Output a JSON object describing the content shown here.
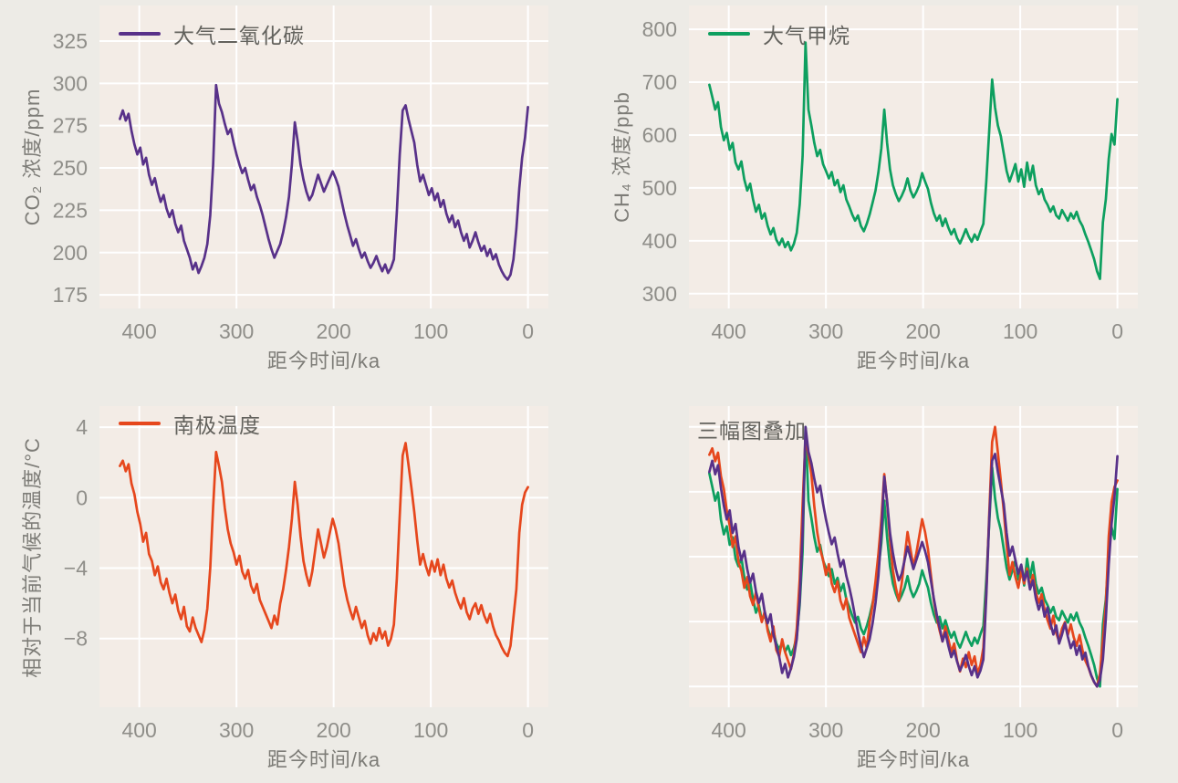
{
  "style": {
    "page_bg": "#edebe6",
    "plot_bg": "#f3ece6",
    "grid_color": "#ffffff",
    "tick_color": "#8f8e89",
    "co2_color": "#583189",
    "ch4_color": "#0d9f5f",
    "temp_color": "#e6471d"
  },
  "axes": {
    "x_label": "距今时间/ka",
    "x_ticks": [
      400,
      300,
      200,
      100,
      0
    ],
    "x_range": [
      441,
      -21
    ],
    "x_reversed": true,
    "grid": "white gridlines on light panel background, no axis spines"
  },
  "chart_data": [
    {
      "id": "co2",
      "type": "line",
      "title": "大气二氧化碳",
      "ylabel": "CO₂ 浓度/ppm",
      "xlabel": "距今时间/ka",
      "color": "#583189",
      "legend_position": "upper-left",
      "yticks": [
        325,
        300,
        275,
        250,
        225,
        200,
        175
      ],
      "ylim": [
        167,
        346
      ],
      "x": [
        420,
        417,
        414,
        411,
        408,
        405,
        402,
        399,
        396,
        393,
        390,
        387,
        384,
        381,
        378,
        375,
        372,
        369,
        366,
        363,
        360,
        357,
        354,
        351,
        348,
        345,
        342,
        339,
        336,
        333,
        330,
        327,
        324,
        321,
        318,
        315,
        312,
        309,
        306,
        303,
        300,
        297,
        294,
        291,
        288,
        285,
        282,
        279,
        276,
        273,
        270,
        267,
        264,
        261,
        258,
        255,
        252,
        249,
        246,
        243,
        240,
        237,
        234,
        231,
        228,
        225,
        222,
        219,
        216,
        213,
        210,
        207,
        204,
        201,
        198,
        195,
        192,
        189,
        186,
        183,
        180,
        177,
        174,
        171,
        168,
        165,
        162,
        159,
        156,
        153,
        150,
        147,
        144,
        141,
        138,
        135,
        132,
        129,
        126,
        123,
        120,
        117,
        114,
        111,
        108,
        105,
        102,
        99,
        96,
        93,
        90,
        87,
        84,
        81,
        78,
        75,
        72,
        69,
        66,
        63,
        60,
        57,
        54,
        51,
        48,
        45,
        42,
        39,
        36,
        33,
        30,
        27,
        24,
        21,
        18,
        15,
        12,
        9,
        6,
        3,
        0
      ],
      "values": [
        279,
        284,
        278,
        282,
        272,
        264,
        258,
        262,
        252,
        256,
        246,
        240,
        244,
        236,
        230,
        234,
        226,
        221,
        225,
        217,
        212,
        216,
        207,
        202,
        197,
        190,
        194,
        188,
        192,
        197,
        205,
        222,
        252,
        299,
        288,
        283,
        276,
        270,
        273,
        265,
        258,
        252,
        247,
        250,
        243,
        237,
        240,
        233,
        228,
        222,
        215,
        208,
        202,
        197,
        201,
        205,
        212,
        221,
        233,
        252,
        277,
        266,
        252,
        243,
        236,
        231,
        234,
        240,
        246,
        241,
        236,
        240,
        244,
        248,
        244,
        239,
        231,
        223,
        216,
        210,
        204,
        208,
        202,
        197,
        200,
        195,
        191,
        194,
        198,
        193,
        189,
        193,
        188,
        191,
        196,
        224,
        258,
        284,
        287,
        279,
        272,
        265,
        252,
        242,
        246,
        240,
        234,
        238,
        231,
        235,
        227,
        231,
        223,
        218,
        222,
        215,
        219,
        212,
        207,
        211,
        203,
        207,
        212,
        206,
        201,
        204,
        198,
        202,
        196,
        199,
        193,
        189,
        186,
        184,
        187,
        196,
        214,
        238,
        256,
        268,
        286
      ]
    },
    {
      "id": "ch4",
      "type": "line",
      "title": "大气甲烷",
      "ylabel": "CH₄ 浓度/ppb",
      "xlabel": "距今时间/ka",
      "color": "#0d9f5f",
      "legend_position": "upper-left",
      "yticks": [
        800,
        700,
        600,
        500,
        400,
        300
      ],
      "ylim": [
        272,
        845
      ],
      "x": [
        420,
        417,
        414,
        411,
        408,
        405,
        402,
        399,
        396,
        393,
        390,
        387,
        384,
        381,
        378,
        375,
        372,
        369,
        366,
        363,
        360,
        357,
        354,
        351,
        348,
        345,
        342,
        339,
        336,
        333,
        330,
        327,
        324,
        321,
        318,
        315,
        312,
        309,
        306,
        303,
        300,
        297,
        294,
        291,
        288,
        285,
        282,
        279,
        276,
        273,
        270,
        267,
        264,
        261,
        258,
        255,
        252,
        249,
        246,
        243,
        240,
        237,
        234,
        231,
        228,
        225,
        222,
        219,
        216,
        213,
        210,
        207,
        204,
        201,
        198,
        195,
        192,
        189,
        186,
        183,
        180,
        177,
        174,
        171,
        168,
        165,
        162,
        159,
        156,
        153,
        150,
        147,
        144,
        141,
        138,
        135,
        132,
        129,
        126,
        123,
        120,
        117,
        114,
        111,
        108,
        105,
        102,
        99,
        96,
        93,
        90,
        87,
        84,
        81,
        78,
        75,
        72,
        69,
        66,
        63,
        60,
        57,
        54,
        51,
        48,
        45,
        42,
        39,
        36,
        33,
        30,
        27,
        24,
        21,
        18,
        15,
        12,
        9,
        6,
        3,
        0
      ],
      "values": [
        695,
        672,
        648,
        662,
        615,
        590,
        604,
        572,
        585,
        548,
        535,
        550,
        516,
        495,
        508,
        478,
        455,
        468,
        442,
        452,
        428,
        412,
        424,
        402,
        392,
        404,
        388,
        398,
        382,
        394,
        415,
        468,
        560,
        775,
        648,
        618,
        585,
        560,
        572,
        545,
        532,
        518,
        530,
        505,
        515,
        492,
        505,
        478,
        465,
        450,
        438,
        448,
        428,
        418,
        432,
        450,
        472,
        495,
        530,
        575,
        648,
        585,
        535,
        505,
        488,
        475,
        485,
        498,
        518,
        495,
        482,
        492,
        505,
        528,
        512,
        498,
        472,
        452,
        438,
        448,
        428,
        442,
        425,
        412,
        422,
        405,
        395,
        408,
        422,
        408,
        398,
        412,
        402,
        418,
        432,
        512,
        608,
        705,
        652,
        618,
        598,
        565,
        532,
        512,
        528,
        545,
        512,
        535,
        502,
        548,
        515,
        542,
        505,
        488,
        498,
        478,
        468,
        455,
        465,
        448,
        442,
        458,
        448,
        438,
        452,
        442,
        455,
        438,
        428,
        412,
        398,
        382,
        365,
        342,
        328,
        435,
        478,
        555,
        602,
        582,
        668
      ]
    },
    {
      "id": "temp",
      "type": "line",
      "title": "南极温度",
      "ylabel": "相对于当前气候的温度/°C",
      "xlabel": "距今时间/ka",
      "color": "#e6471d",
      "legend_position": "upper-left",
      "yticks": [
        4,
        0,
        -4,
        -8
      ],
      "ylim": [
        -11.9,
        5.2
      ],
      "x": [
        420,
        417,
        414,
        411,
        408,
        405,
        402,
        399,
        396,
        393,
        390,
        387,
        384,
        381,
        378,
        375,
        372,
        369,
        366,
        363,
        360,
        357,
        354,
        351,
        348,
        345,
        342,
        339,
        336,
        333,
        330,
        327,
        324,
        321,
        318,
        315,
        312,
        309,
        306,
        303,
        300,
        297,
        294,
        291,
        288,
        285,
        282,
        279,
        276,
        273,
        270,
        267,
        264,
        261,
        258,
        255,
        252,
        249,
        246,
        243,
        240,
        237,
        234,
        231,
        228,
        225,
        222,
        219,
        216,
        213,
        210,
        207,
        204,
        201,
        198,
        195,
        192,
        189,
        186,
        183,
        180,
        177,
        174,
        171,
        168,
        165,
        162,
        159,
        156,
        153,
        150,
        147,
        144,
        141,
        138,
        135,
        132,
        129,
        126,
        123,
        120,
        117,
        114,
        111,
        108,
        105,
        102,
        99,
        96,
        93,
        90,
        87,
        84,
        81,
        78,
        75,
        72,
        69,
        66,
        63,
        60,
        57,
        54,
        51,
        48,
        45,
        42,
        39,
        36,
        33,
        30,
        27,
        24,
        21,
        18,
        15,
        12,
        9,
        6,
        3,
        0
      ],
      "values": [
        1.8,
        2.1,
        1.5,
        1.9,
        0.8,
        0.2,
        -0.8,
        -1.5,
        -2.5,
        -2.0,
        -3.2,
        -3.6,
        -4.4,
        -3.9,
        -4.8,
        -5.2,
        -4.6,
        -5.4,
        -6.0,
        -5.5,
        -6.4,
        -6.9,
        -6.2,
        -7.3,
        -7.6,
        -6.8,
        -7.4,
        -7.8,
        -8.2,
        -7.5,
        -6.3,
        -4.0,
        -0.5,
        2.6,
        1.8,
        0.9,
        -0.6,
        -1.8,
        -2.6,
        -3.1,
        -3.8,
        -3.3,
        -4.2,
        -4.6,
        -4.1,
        -5.0,
        -5.4,
        -4.9,
        -5.8,
        -6.2,
        -6.6,
        -7.0,
        -7.4,
        -6.7,
        -7.2,
        -6.0,
        -5.2,
        -4.1,
        -2.8,
        -1.2,
        0.9,
        -0.4,
        -2.2,
        -3.6,
        -4.4,
        -5.0,
        -4.2,
        -3.0,
        -1.8,
        -2.6,
        -3.4,
        -2.8,
        -2.0,
        -1.2,
        -1.8,
        -2.6,
        -3.8,
        -5.0,
        -5.8,
        -6.4,
        -6.9,
        -6.2,
        -6.8,
        -7.4,
        -7.0,
        -7.8,
        -8.3,
        -7.7,
        -8.1,
        -7.4,
        -8.0,
        -7.6,
        -8.4,
        -8.0,
        -7.2,
        -4.6,
        -1.0,
        2.4,
        3.1,
        1.9,
        0.6,
        -0.8,
        -2.4,
        -3.8,
        -3.2,
        -3.9,
        -4.4,
        -3.6,
        -4.2,
        -3.5,
        -4.4,
        -3.8,
        -4.6,
        -5.1,
        -4.7,
        -5.4,
        -5.9,
        -6.3,
        -5.7,
        -6.5,
        -6.9,
        -6.3,
        -6.0,
        -6.6,
        -6.1,
        -6.7,
        -7.1,
        -6.6,
        -7.3,
        -7.8,
        -8.1,
        -8.5,
        -8.8,
        -9.0,
        -8.4,
        -6.8,
        -5.2,
        -2.0,
        -0.4,
        0.3,
        0.6
      ]
    },
    {
      "id": "overlay",
      "type": "line",
      "title": "三幅图叠加",
      "xlabel": "距今时间/ka",
      "normalized": true,
      "overlay_of": [
        "ch4",
        "temp",
        "co2"
      ],
      "yticks_shown": false
    }
  ]
}
